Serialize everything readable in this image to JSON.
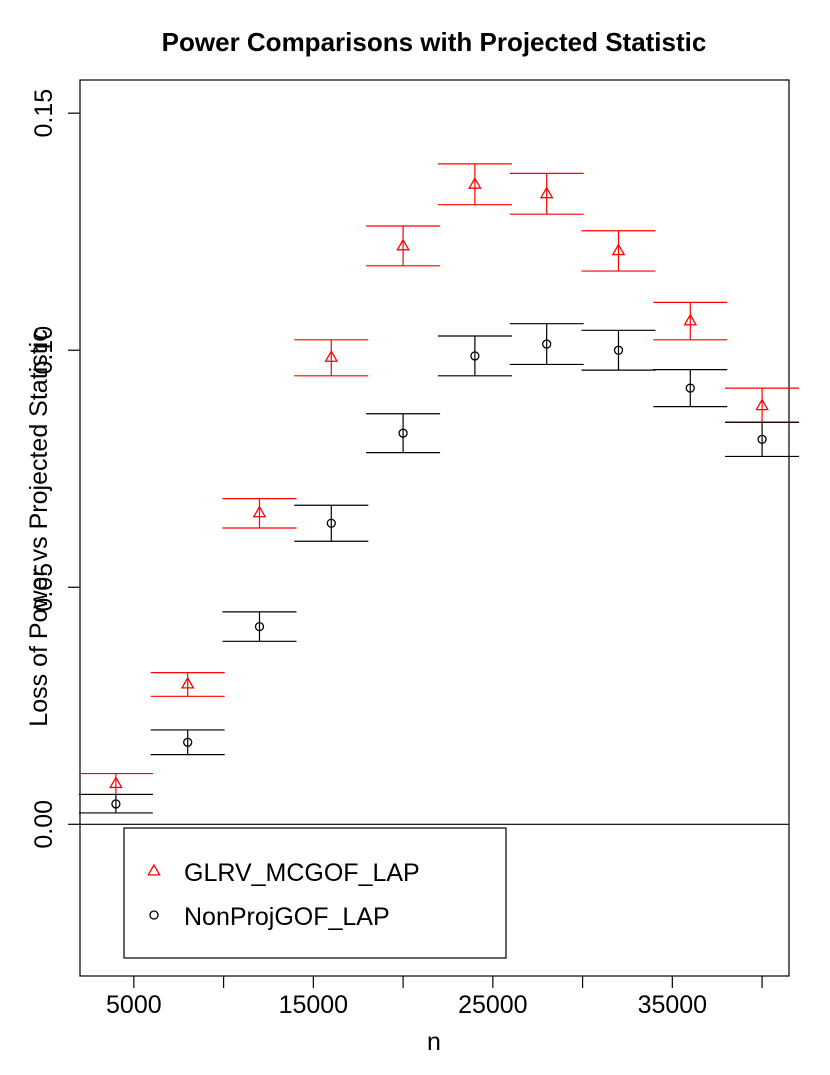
{
  "chart_data": {
    "type": "scatter",
    "title": "Power Comparisons with Projected Statistic",
    "xlabel": "n",
    "ylabel": "Loss of Power vs Projected Statistic",
    "x_ticks": [
      5000,
      10000,
      15000,
      20000,
      25000,
      30000,
      35000,
      40000
    ],
    "x_tick_labels": [
      "5000",
      "",
      "15000",
      "",
      "25000",
      "",
      "35000",
      ""
    ],
    "y_ticks": [
      0.0,
      0.05,
      0.1,
      0.15
    ],
    "y_tick_labels": [
      "0.00",
      "0.05",
      "0.10",
      "0.15"
    ],
    "xlim": [
      2000,
      41500
    ],
    "ylim": [
      -0.032,
      0.157
    ],
    "reference_line_y": 0.0,
    "legend_position": "bottom-left",
    "x": [
      4000,
      8000,
      12000,
      16000,
      20000,
      24000,
      28000,
      32000,
      36000,
      40000
    ],
    "series": [
      {
        "name": "GLRV_MCGOF_LAP",
        "color": "#ff0000",
        "marker": "triangle",
        "values": [
          0.0086,
          0.0296,
          0.0657,
          0.0985,
          0.122,
          0.135,
          0.133,
          0.121,
          0.1062,
          0.0883
        ],
        "lower": [
          0.0063,
          0.027,
          0.0625,
          0.0946,
          0.1178,
          0.1307,
          0.1287,
          0.1167,
          0.1022,
          0.0848
        ],
        "upper": [
          0.0107,
          0.032,
          0.0687,
          0.1022,
          0.1262,
          0.1393,
          0.1373,
          0.1252,
          0.1101,
          0.092
        ]
      },
      {
        "name": "NonProjGOF_LAP",
        "color": "#000000",
        "marker": "circle",
        "values": [
          0.0043,
          0.0173,
          0.0417,
          0.0635,
          0.0825,
          0.0988,
          0.1013,
          0.1,
          0.092,
          0.0812
        ],
        "lower": [
          0.0024,
          0.0147,
          0.0386,
          0.0597,
          0.0784,
          0.0946,
          0.097,
          0.0958,
          0.0881,
          0.0776
        ],
        "upper": [
          0.0063,
          0.0199,
          0.0448,
          0.0673,
          0.0866,
          0.103,
          0.1056,
          0.1042,
          0.0959,
          0.0848
        ]
      }
    ]
  }
}
